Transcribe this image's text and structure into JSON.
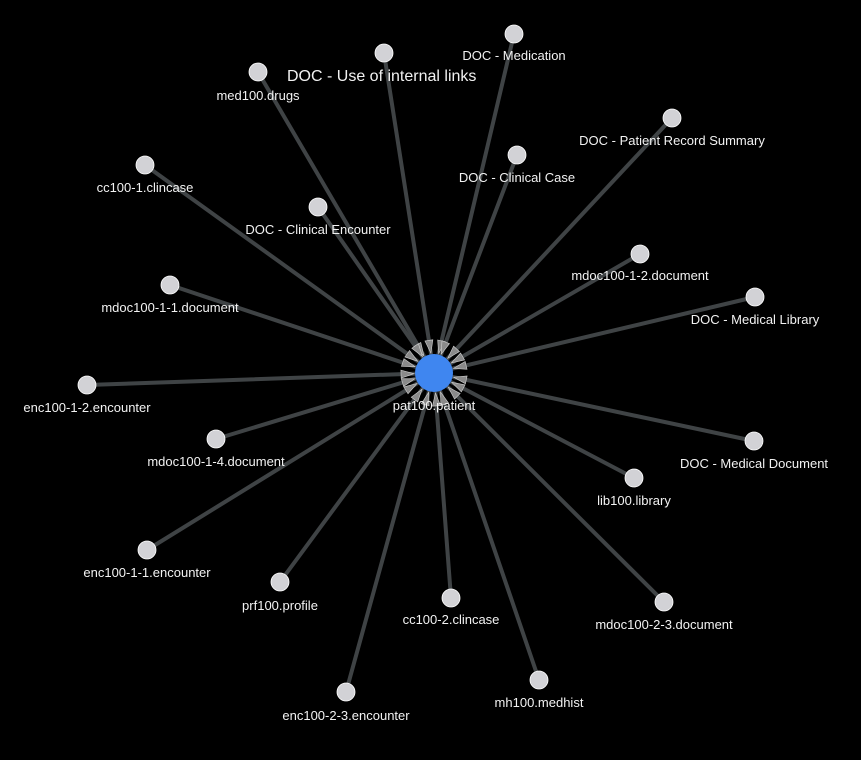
{
  "center": {
    "label": "pat100.patient",
    "color": "#3f86f0"
  },
  "nodes": [
    {
      "id": "doc-use-of-internal-links",
      "label": "DOC - Use of internal links",
      "emphasis": true
    },
    {
      "id": "doc-medication",
      "label": "DOC - Medication"
    },
    {
      "id": "med100-drugs",
      "label": "med100.drugs"
    },
    {
      "id": "doc-patient-record-summary",
      "label": "DOC - Patient Record Summary"
    },
    {
      "id": "doc-clinical-case",
      "label": "DOC - Clinical Case"
    },
    {
      "id": "cc100-1-clincase",
      "label": "cc100-1.clincase"
    },
    {
      "id": "doc-clinical-encounter",
      "label": "DOC - Clinical Encounter"
    },
    {
      "id": "mdoc100-1-2-document",
      "label": "mdoc100-1-2.document"
    },
    {
      "id": "mdoc100-1-1-document",
      "label": "mdoc100-1-1.document"
    },
    {
      "id": "doc-medical-library",
      "label": "DOC - Medical Library"
    },
    {
      "id": "enc100-1-2-encounter",
      "label": "enc100-1-2.encounter"
    },
    {
      "id": "mdoc100-1-4-document",
      "label": "mdoc100-1-4.document"
    },
    {
      "id": "doc-medical-document",
      "label": "DOC - Medical Document"
    },
    {
      "id": "lib100-library",
      "label": "lib100.library"
    },
    {
      "id": "enc100-1-1-encounter",
      "label": "enc100-1-1.encounter"
    },
    {
      "id": "prf100-profile",
      "label": "prf100.profile"
    },
    {
      "id": "cc100-2-clincase",
      "label": "cc100-2.clincase"
    },
    {
      "id": "mdoc100-2-3-document",
      "label": "mdoc100-2-3.document"
    },
    {
      "id": "mh100-medhist",
      "label": "mh100.medhist"
    },
    {
      "id": "enc100-2-3-encounter",
      "label": "enc100-2-3.encounter"
    }
  ],
  "colors": {
    "background": "#000000",
    "edge": "#3f4345",
    "node": "#d2d2d6",
    "text": "#f2f2f2"
  }
}
